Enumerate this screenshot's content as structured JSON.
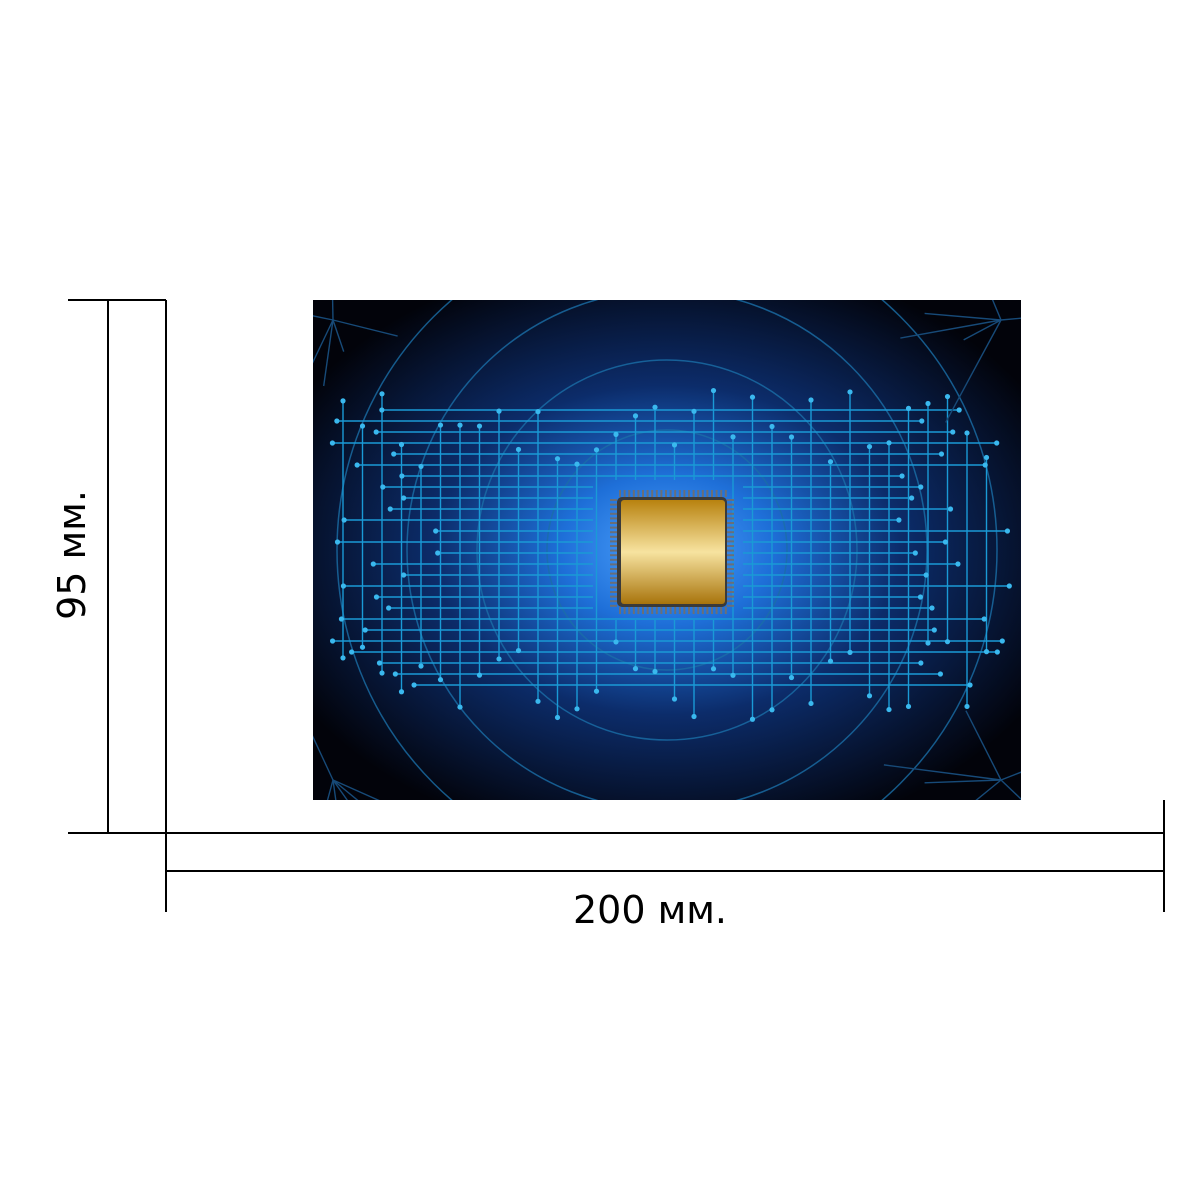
{
  "dimensions": {
    "width_label": "200 мм.",
    "height_label": "95 мм."
  },
  "artwork": {
    "subject": "circuit-board-chip",
    "colors": {
      "background": "#02030a",
      "glow": "#1e6fd8",
      "trace": "#1a9ad6",
      "trace_dark": "#174a78",
      "chip_gold": "#c8951a",
      "chip_light": "#f7e3a0",
      "pins": "#6a6f78"
    }
  }
}
